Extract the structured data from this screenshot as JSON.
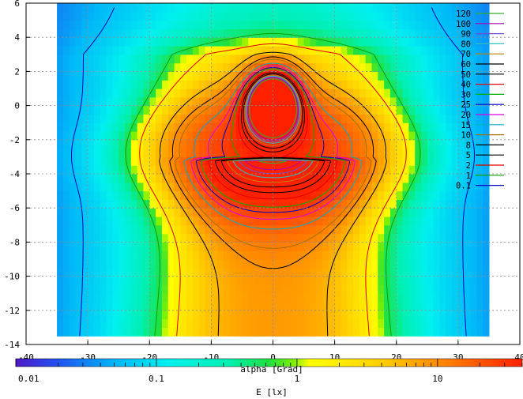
{
  "chart_data": {
    "type": "heatmap",
    "title": "",
    "xlabel": "alpha [Grad]",
    "ylabel": "",
    "xlim": [
      -40,
      40
    ],
    "ylim": [
      -14,
      6
    ],
    "xticks": [
      -40,
      -30,
      -20,
      -10,
      0,
      10,
      20,
      30,
      40
    ],
    "yticks": [
      -14,
      -12,
      -10,
      -8,
      -6,
      -4,
      -2,
      0,
      2,
      4,
      6
    ],
    "grid": true,
    "data_extent": {
      "x": [
        -35,
        35
      ],
      "y": [
        -13.5,
        5.8
      ]
    },
    "peak": {
      "x": 0,
      "y": 0.3
    },
    "colorbar": {
      "label": "E [lx]",
      "scale": "log",
      "range": [
        0.01,
        40
      ],
      "tick_labels": [
        "0.01",
        "0.1",
        "1",
        "10"
      ],
      "tick_values": [
        0.01,
        0.1,
        1,
        10
      ],
      "placement": "bottom"
    },
    "contour_levels": [
      {
        "label": "120",
        "value": 120,
        "color": "#30b030"
      },
      {
        "label": "100",
        "value": 100,
        "color": "#b000b0"
      },
      {
        "label": "90",
        "value": 90,
        "color": "#7050d0"
      },
      {
        "label": "80",
        "value": 80,
        "color": "#30c0c0"
      },
      {
        "label": "70",
        "value": 70,
        "color": "#c08000"
      },
      {
        "label": "60",
        "value": 60,
        "color": "#000000"
      },
      {
        "label": "50",
        "value": 50,
        "color": "#000000"
      },
      {
        "label": "40",
        "value": 40,
        "color": "#e00000"
      },
      {
        "label": "30",
        "value": 30,
        "color": "#00b000"
      },
      {
        "label": "25",
        "value": 25,
        "color": "#0000c0"
      },
      {
        "label": "20",
        "value": 20,
        "color": "#e000e0"
      },
      {
        "label": "15",
        "value": 15,
        "color": "#00b0c0"
      },
      {
        "label": "10",
        "value": 10,
        "color": "#a07000"
      },
      {
        "label": "8",
        "value": 8,
        "color": "#000000"
      },
      {
        "label": "5",
        "value": 5,
        "color": "#000000"
      },
      {
        "label": "2",
        "value": 2,
        "color": "#e00000"
      },
      {
        "label": "1",
        "value": 1,
        "color": "#00a000"
      },
      {
        "label": "0.1",
        "value": 0.1,
        "color": "#0000c0"
      }
    ],
    "legend_placement": "top-right"
  }
}
